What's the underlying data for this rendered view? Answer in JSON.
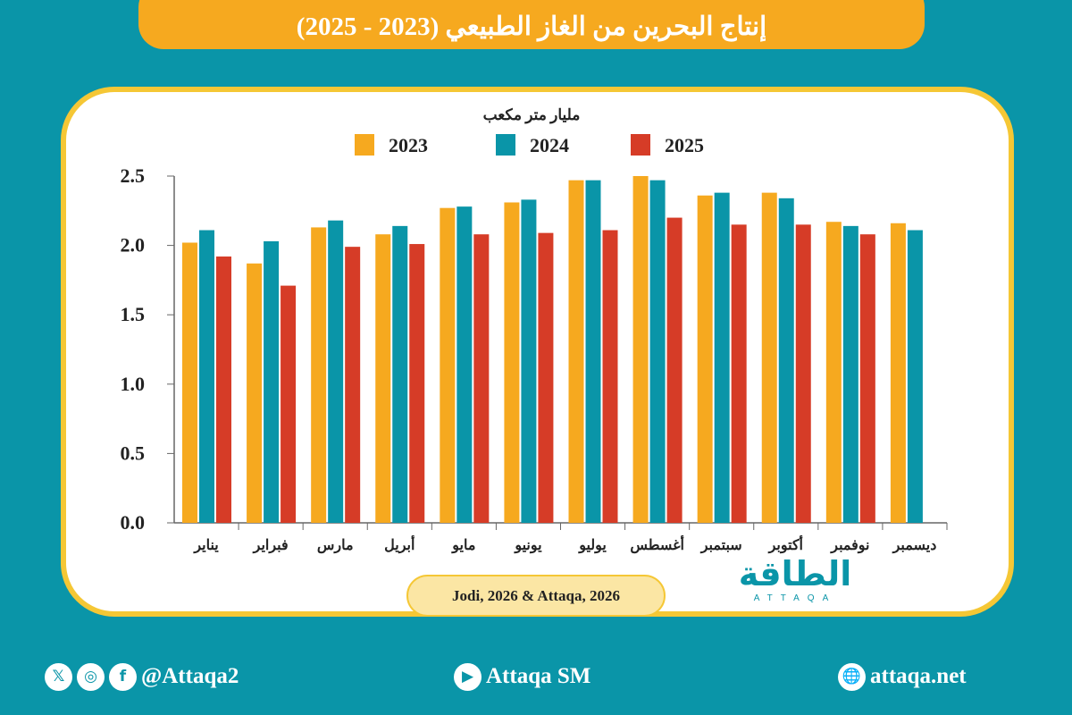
{
  "header": {
    "title": "إنتاج البحرين من الغاز الطبيعي (2023 - 2025)"
  },
  "chart_data": {
    "type": "bar",
    "title": "",
    "ylabel": "مليار متر مكعب",
    "xlabel": "",
    "ylim": [
      0,
      2.5
    ],
    "yticks": [
      "0.0",
      "0.5",
      "1.0",
      "1.5",
      "2.0",
      "2.5"
    ],
    "grid": false,
    "legend": "top",
    "categories": [
      "يناير",
      "فبراير",
      "مارس",
      "أبريل",
      "مايو",
      "يونيو",
      "يوليو",
      "أغسطس",
      "سبتمبر",
      "أكتوبر",
      "نوفمبر",
      "ديسمبر"
    ],
    "series": [
      {
        "name": "2023",
        "color": "#f6a91f",
        "values": [
          2.02,
          1.87,
          2.13,
          2.08,
          2.27,
          2.31,
          2.47,
          2.5,
          2.36,
          2.38,
          2.17,
          2.16
        ]
      },
      {
        "name": "2024",
        "color": "#0a95a8",
        "values": [
          2.11,
          2.03,
          2.18,
          2.14,
          2.28,
          2.33,
          2.47,
          2.47,
          2.38,
          2.34,
          2.14,
          2.11
        ]
      },
      {
        "name": "2025",
        "color": "#d63c27",
        "values": [
          1.92,
          1.71,
          1.99,
          2.01,
          2.08,
          2.09,
          2.11,
          2.2,
          2.15,
          2.15,
          2.08,
          null
        ]
      }
    ]
  },
  "source": "Jodi, 2026 & Attaqa, 2026",
  "logo": {
    "arabic": "الطاقة",
    "latin": "ATTAQA"
  },
  "footer": {
    "social_handle": "@Attaqa2",
    "youtube": "Attaqa SM",
    "website": "attaqa.net",
    "icons": [
      "x-icon",
      "instagram-icon",
      "facebook-icon",
      "youtube-icon",
      "globe-icon"
    ]
  }
}
